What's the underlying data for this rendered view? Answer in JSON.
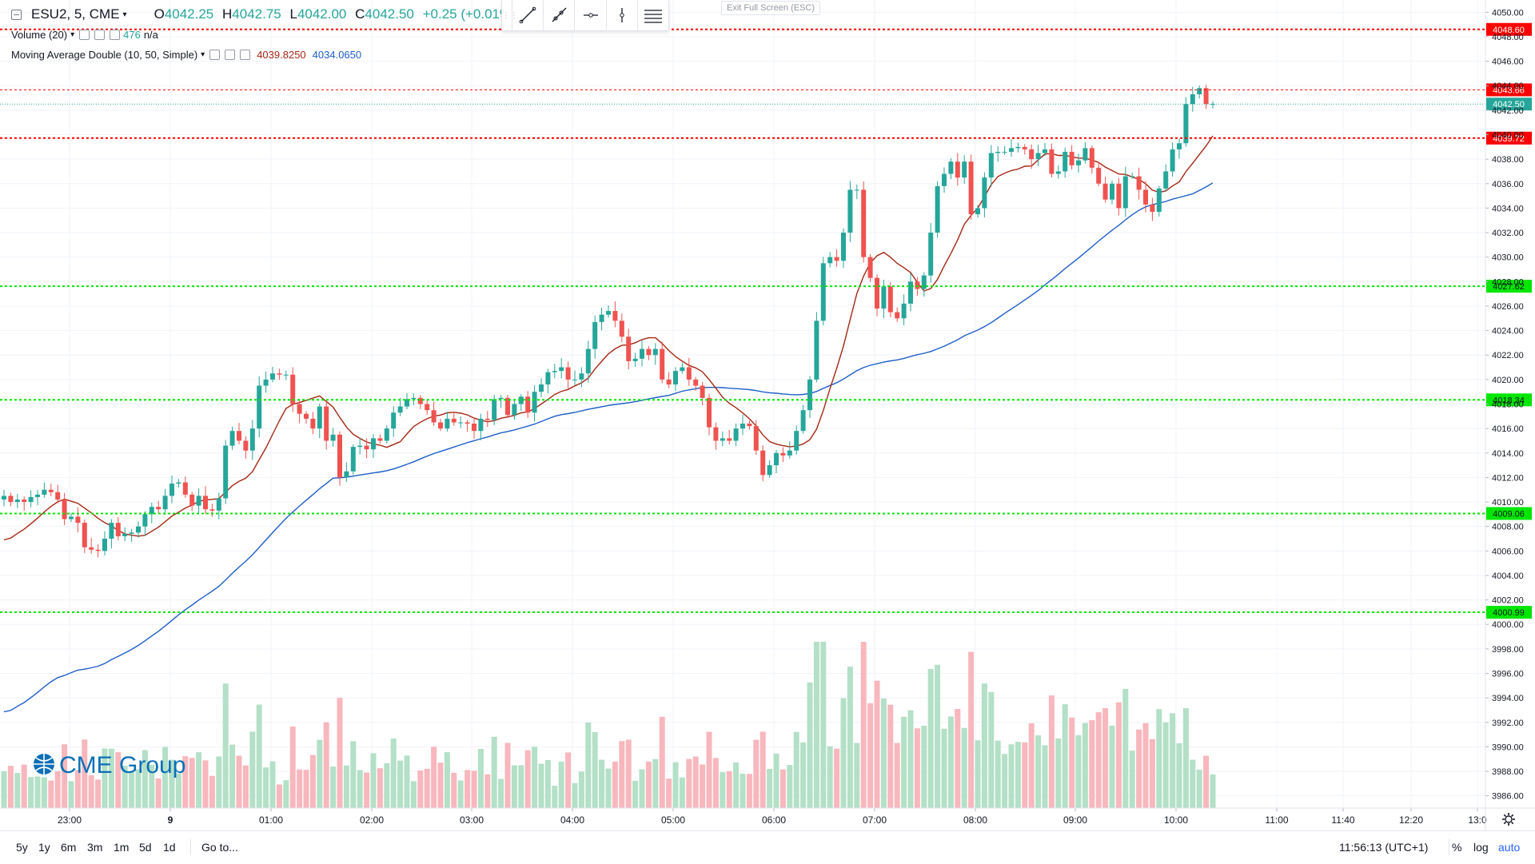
{
  "header": {
    "symbol": "ESU2, 5, CME",
    "ohlc": {
      "open_label": "O",
      "open": "4042.25",
      "high_label": "H",
      "high": "4042.75",
      "low_label": "L",
      "low": "4042.00",
      "close_label": "C",
      "close": "4042.50",
      "change": "+0.25 (+0.01%)"
    },
    "exit_fullscreen": "Exit Full Screen (ESC)"
  },
  "indicators": {
    "volume": {
      "label": "Volume (20)",
      "value": "476",
      "ma_value": "n/a"
    },
    "ma_double": {
      "label": "Moving Average Double (10, 50, Simple)",
      "fast_value": "4039.8250",
      "slow_value": "4034.0650",
      "fast_color": "#a52714",
      "slow_color": "#1e5ec8"
    }
  },
  "toolbar": {
    "tools": [
      "trend-line-tool",
      "ray-tool",
      "horizontal-ray-tool",
      "vertical-line-tool",
      "menu-tool"
    ]
  },
  "watermark": "CME Group",
  "colors": {
    "up": "#26a69a",
    "down": "#ef5350",
    "up_volume": "#b3e0c7",
    "down_volume": "#f7b7bd",
    "red_level": "#ff0000",
    "green_level": "#00e600",
    "last_price": "#26a69a"
  },
  "chart_data": {
    "type": "candlestick",
    "timeframe": "5",
    "y_axis": {
      "min": 3985,
      "max": 4051,
      "ticks": [
        "4050.00",
        "4048.00",
        "4046.00",
        "4044.00",
        "4042.00",
        "4040.00",
        "4038.00",
        "4036.00",
        "4034.00",
        "4032.00",
        "4030.00",
        "4028.00",
        "4026.00",
        "4024.00",
        "4022.00",
        "4020.00",
        "4018.00",
        "4016.00",
        "4014.00",
        "4012.00",
        "4010.00",
        "4008.00",
        "4006.00",
        "4004.00",
        "4002.00",
        "4000.00",
        "3998.00",
        "3996.00",
        "3994.00",
        "3992.00",
        "3990.00",
        "3988.00",
        "3986.00"
      ]
    },
    "x_axis": {
      "ticks": [
        "23:00",
        "9",
        "01:00",
        "02:00",
        "03:00",
        "04:00",
        "05:00",
        "06:00",
        "07:00",
        "08:00",
        "09:00",
        "10:00",
        "11:00",
        "11:40",
        "12:20",
        "13:0"
      ]
    },
    "price_lines": [
      {
        "label": "4048.60",
        "value": 4048.6,
        "color": "red"
      },
      {
        "label": "4043.66",
        "value": 4043.66,
        "color": "red"
      },
      {
        "label": "4042.50",
        "value": 4042.5,
        "color": "last"
      },
      {
        "label": "4039.72",
        "value": 4039.72,
        "color": "red"
      },
      {
        "label": "4027.62",
        "value": 4027.62,
        "color": "green"
      },
      {
        "label": "4018.34",
        "value": 4018.34,
        "color": "green"
      },
      {
        "label": "4009.06",
        "value": 4009.06,
        "color": "green"
      },
      {
        "label": "4000.99",
        "value": 4000.99,
        "color": "green"
      }
    ],
    "closes": [
      4010.5,
      4010.0,
      4010.2,
      4010.0,
      4010.4,
      4010.6,
      4011.0,
      4010.8,
      4010.2,
      4008.6,
      4008.8,
      4008.3,
      4006.3,
      4006.1,
      4006.0,
      4007.0,
      4008.3,
      4007.2,
      4007.4,
      4007.5,
      4008.0,
      4009.0,
      4009.6,
      4009.4,
      4010.5,
      4011.5,
      4011.6,
      4010.6,
      4009.7,
      4010.5,
      4009.4,
      4009.3,
      4010.3,
      4014.6,
      4015.8,
      4015.0,
      4014.2,
      4016.0,
      4019.5,
      4020.0,
      4020.5,
      4020.4,
      4020.4,
      4018.0,
      4017.2,
      4016.8,
      4016.0,
      4017.8,
      4015.0,
      4015.5,
      4012.0,
      4012.5,
      4014.5,
      4014.6,
      4014.3,
      4015.2,
      4015.0,
      4016.0,
      4017.3,
      4017.8,
      4018.4,
      4018.5,
      4018.0,
      4017.5,
      4016.5,
      4016.0,
      4016.8,
      4016.5,
      4016.5,
      4016.4,
      4015.8,
      4016.8,
      4016.7,
      4018.4,
      4018.5,
      4017.1,
      4018.0,
      4018.6,
      4017.3,
      4019.0,
      4019.6,
      4020.6,
      4020.7,
      4021.0,
      4020.0,
      4020.0,
      4020.5,
      4022.5,
      4024.7,
      4025.3,
      4025.6,
      4024.8,
      4023.5,
      4021.5,
      4021.7,
      4022.5,
      4022.0,
      4022.5,
      4020.0,
      4019.6,
      4020.7,
      4021.0,
      4020.0,
      4019.5,
      4018.5,
      4016.1,
      4015.0,
      4015.2,
      4015.0,
      4016.0,
      4016.4,
      4016.2,
      4014.2,
      4012.2,
      4013.0,
      4014.0,
      4013.8,
      4014.2,
      4015.8,
      4017.5,
      4020.0,
      4024.8,
      4029.5,
      4030.0,
      4029.7,
      4032.0,
      4035.5,
      4035.5,
      4030.0,
      4028.3,
      4025.8,
      4027.6,
      4025.5,
      4025.0,
      4026.2,
      4028.0,
      4027.4,
      4028.5,
      4032.0,
      4035.8,
      4036.8,
      4037.8,
      4036.5,
      4037.8,
      4033.5,
      4034.0,
      4036.5,
      4038.5,
      4038.6,
      4038.6,
      4038.9,
      4039.0,
      4038.8,
      4038.0,
      4038.5,
      4038.8,
      4036.8,
      4037.0,
      4038.6,
      4037.5,
      4037.9,
      4038.9,
      4037.3,
      4036.0,
      4034.7,
      4036.0,
      4034.0,
      4036.6,
      4036.6,
      4035.5,
      4034.3,
      4033.7,
      4035.6,
      4037.0,
      4038.8,
      4039.3,
      4042.5,
      4043.3,
      4043.8,
      4042.5,
      4042.5
    ]
  }
}
